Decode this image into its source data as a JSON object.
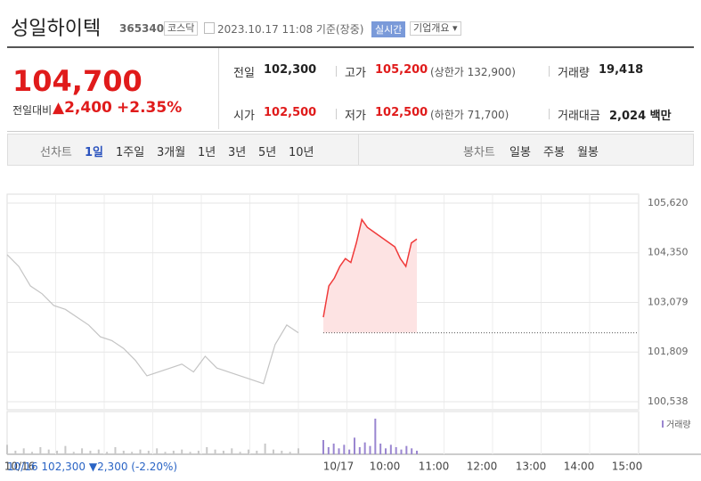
{
  "header": {
    "name": "성일하이텍",
    "code": "365340",
    "market": "코스닥",
    "time": "2023.10.17 11:08 기준(장중)",
    "realtime": "실시간",
    "overview": "기업개요"
  },
  "quote": {
    "price": "104,700",
    "change_label": "전일대비",
    "change": "▲2,400",
    "rate": "+2.35%",
    "stats": [
      [
        {
          "label": "전일",
          "value": "102,300"
        },
        {
          "label": "고가",
          "value": "105,200",
          "note": "(상한가 132,900)"
        },
        {
          "label": "거래량",
          "value": "19,418"
        }
      ],
      [
        {
          "label": "시가",
          "value": "102,500"
        },
        {
          "label": "저가",
          "value": "102,500",
          "note": "(하한가 71,700)"
        },
        {
          "label": "거래대금",
          "value": "2,024 백만"
        }
      ]
    ]
  },
  "tabs": {
    "line": {
      "label": "선차트",
      "items": [
        "1일",
        "1주일",
        "3개월",
        "1년",
        "3년",
        "5년",
        "10년"
      ]
    },
    "candle": {
      "label": "봉차트",
      "items": [
        "일봉",
        "주봉",
        "월봉"
      ]
    }
  },
  "chart_data": {
    "type": "line",
    "ylim": [
      100538,
      105620
    ],
    "yticks": [
      {
        "value": 105620,
        "label": "105,620"
      },
      {
        "value": 104350,
        "label": "104,350"
      },
      {
        "value": 103079,
        "label": "103,079"
      },
      {
        "value": 101809,
        "label": "101,809"
      },
      {
        "value": 100538,
        "label": "100,538"
      }
    ],
    "previous_close": 102300,
    "series": [
      {
        "color": "#c4c4c4",
        "values": [
          104300,
          104000,
          103500,
          103300,
          103000,
          102900,
          102700,
          102500,
          102200,
          102100,
          101900,
          101600,
          101200,
          101300,
          101400,
          101500,
          101300,
          101700,
          101400,
          101300,
          101200,
          101100,
          101000,
          102000,
          102500,
          102300
        ]
      },
      {
        "color": "#f03a3a",
        "values": [
          102700,
          103500,
          103700,
          104000,
          104200,
          104100,
          104600,
          105200,
          105000,
          104900,
          104800,
          104700,
          104600,
          104500,
          104200,
          104000,
          104600,
          104700
        ]
      }
    ],
    "volume_label": "거래량",
    "volume": [
      {
        "color": "#c8c8c8",
        "values": [
          8,
          3,
          5,
          2,
          6,
          4,
          3,
          7,
          2,
          5,
          3,
          4,
          2,
          6,
          3,
          2,
          4,
          3,
          5,
          2,
          3,
          4,
          2,
          3,
          6,
          4,
          3,
          5,
          2,
          4,
          3,
          9,
          4,
          3,
          2,
          5
        ]
      },
      {
        "color": "#9a86d0",
        "values": [
          12,
          6,
          9,
          5,
          8,
          4,
          14,
          6,
          10,
          7,
          30,
          9,
          5,
          8,
          6,
          4,
          7,
          5,
          3
        ]
      }
    ],
    "xtick_labels": [
      "10/16",
      "10/17",
      "10:00",
      "11:00",
      "12:00",
      "13:00",
      "14:00",
      "15:00"
    ]
  },
  "footer": {
    "date": "10/16",
    "close": "102,300",
    "change": "▼2,300",
    "rate": "(-2.20%)"
  }
}
